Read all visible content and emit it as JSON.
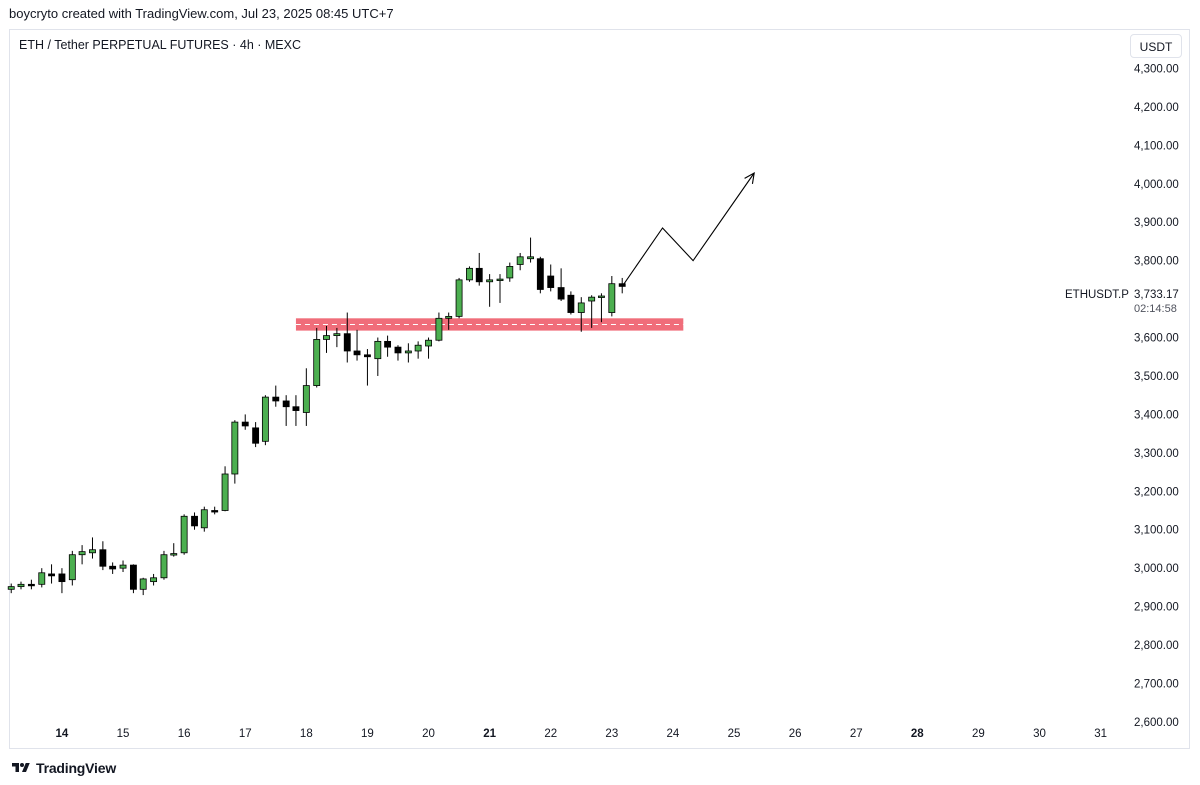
{
  "caption": "boycryto created with TradingView.com, Jul 23, 2025 08:45 UTC+7",
  "symbol_title": "ETH / Tether PERPETUAL FUTURES · 4h · MEXC",
  "currency": "USDT",
  "ticker_label": "ETHUSDT.P",
  "current_price": "3,733.17",
  "countdown": "02:14:58",
  "footer_brand": "TradingView",
  "colors": {
    "up": "#4caf50",
    "down": "#000000",
    "zone": "#f06d7a",
    "grid": "#e0e3eb"
  },
  "chart_data": {
    "type": "candlestick",
    "title": "ETH / Tether PERPETUAL FUTURES · 4h · MEXC",
    "ylabel": "USDT",
    "ylim": [
      2540,
      4400
    ],
    "yticks": [
      {
        "value": 4300,
        "label": "4,300.00"
      },
      {
        "value": 4200,
        "label": "4,200.00"
      },
      {
        "value": 4100,
        "label": "4,100.00"
      },
      {
        "value": 4000,
        "label": "4,000.00"
      },
      {
        "value": 3900,
        "label": "3,900.00"
      },
      {
        "value": 3800,
        "label": "3,800.00"
      },
      {
        "value": 3600,
        "label": "3,600.00"
      },
      {
        "value": 3500,
        "label": "3,500.00"
      },
      {
        "value": 3400,
        "label": "3,400.00"
      },
      {
        "value": 3300,
        "label": "3,300.00"
      },
      {
        "value": 3200,
        "label": "3,200.00"
      },
      {
        "value": 3100,
        "label": "3,100.00"
      },
      {
        "value": 3000,
        "label": "3,000.00"
      },
      {
        "value": 2900,
        "label": "2,900.00"
      },
      {
        "value": 2800,
        "label": "2,800.00"
      },
      {
        "value": 2700,
        "label": "2,700.00"
      },
      {
        "value": 2600,
        "label": "2,600.00"
      }
    ],
    "xlim": [
      13.15,
      31.35
    ],
    "xticks": [
      {
        "day": 14,
        "label": "14",
        "bold": true
      },
      {
        "day": 15,
        "label": "15",
        "bold": false
      },
      {
        "day": 16,
        "label": "16",
        "bold": false
      },
      {
        "day": 17,
        "label": "17",
        "bold": false
      },
      {
        "day": 18,
        "label": "18",
        "bold": false
      },
      {
        "day": 19,
        "label": "19",
        "bold": false
      },
      {
        "day": 20,
        "label": "20",
        "bold": false
      },
      {
        "day": 21,
        "label": "21",
        "bold": true
      },
      {
        "day": 22,
        "label": "22",
        "bold": false
      },
      {
        "day": 23,
        "label": "23",
        "bold": false
      },
      {
        "day": 24,
        "label": "24",
        "bold": false
      },
      {
        "day": 25,
        "label": "25",
        "bold": false
      },
      {
        "day": 26,
        "label": "26",
        "bold": false
      },
      {
        "day": 27,
        "label": "27",
        "bold": false
      },
      {
        "day": 28,
        "label": "28",
        "bold": true
      },
      {
        "day": 29,
        "label": "29",
        "bold": false
      },
      {
        "day": 30,
        "label": "30",
        "bold": false
      },
      {
        "day": 31,
        "label": "31",
        "bold": false
      }
    ],
    "candles": [
      {
        "t": 13.17,
        "o": 2945,
        "h": 2960,
        "l": 2935,
        "c": 2952
      },
      {
        "t": 13.33,
        "o": 2952,
        "h": 2965,
        "l": 2945,
        "c": 2958
      },
      {
        "t": 13.5,
        "o": 2958,
        "h": 2970,
        "l": 2945,
        "c": 2955
      },
      {
        "t": 13.67,
        "o": 2958,
        "h": 3000,
        "l": 2950,
        "c": 2988
      },
      {
        "t": 13.83,
        "o": 2985,
        "h": 3010,
        "l": 2960,
        "c": 2980
      },
      {
        "t": 14.0,
        "o": 2985,
        "h": 3000,
        "l": 2935,
        "c": 2965
      },
      {
        "t": 14.17,
        "o": 2970,
        "h": 3045,
        "l": 2955,
        "c": 3035
      },
      {
        "t": 14.33,
        "o": 3035,
        "h": 3060,
        "l": 3010,
        "c": 3043
      },
      {
        "t": 14.5,
        "o": 3040,
        "h": 3080,
        "l": 3025,
        "c": 3048
      },
      {
        "t": 14.67,
        "o": 3048,
        "h": 3070,
        "l": 2995,
        "c": 3005
      },
      {
        "t": 14.83,
        "o": 3005,
        "h": 3015,
        "l": 2985,
        "c": 2998
      },
      {
        "t": 15.0,
        "o": 3000,
        "h": 3020,
        "l": 2990,
        "c": 3008
      },
      {
        "t": 15.17,
        "o": 3008,
        "h": 3010,
        "l": 2935,
        "c": 2945
      },
      {
        "t": 15.33,
        "o": 2945,
        "h": 2975,
        "l": 2930,
        "c": 2972
      },
      {
        "t": 15.5,
        "o": 2965,
        "h": 2985,
        "l": 2955,
        "c": 2975
      },
      {
        "t": 15.67,
        "o": 2975,
        "h": 3045,
        "l": 2970,
        "c": 3035
      },
      {
        "t": 15.83,
        "o": 3035,
        "h": 3065,
        "l": 3030,
        "c": 3038
      },
      {
        "t": 16.0,
        "o": 3040,
        "h": 3140,
        "l": 3035,
        "c": 3135
      },
      {
        "t": 16.17,
        "o": 3135,
        "h": 3145,
        "l": 3100,
        "c": 3110
      },
      {
        "t": 16.33,
        "o": 3105,
        "h": 3160,
        "l": 3095,
        "c": 3152
      },
      {
        "t": 16.5,
        "o": 3150,
        "h": 3160,
        "l": 3140,
        "c": 3147
      },
      {
        "t": 16.67,
        "o": 3150,
        "h": 3265,
        "l": 3148,
        "c": 3245
      },
      {
        "t": 16.83,
        "o": 3245,
        "h": 3385,
        "l": 3220,
        "c": 3380
      },
      {
        "t": 17.0,
        "o": 3380,
        "h": 3400,
        "l": 3360,
        "c": 3370
      },
      {
        "t": 17.17,
        "o": 3365,
        "h": 3380,
        "l": 3315,
        "c": 3325
      },
      {
        "t": 17.33,
        "o": 3330,
        "h": 3450,
        "l": 3320,
        "c": 3445
      },
      {
        "t": 17.5,
        "o": 3445,
        "h": 3475,
        "l": 3420,
        "c": 3435
      },
      {
        "t": 17.67,
        "o": 3435,
        "h": 3450,
        "l": 3370,
        "c": 3420
      },
      {
        "t": 17.83,
        "o": 3420,
        "h": 3450,
        "l": 3370,
        "c": 3410
      },
      {
        "t": 18.0,
        "o": 3405,
        "h": 3520,
        "l": 3370,
        "c": 3475
      },
      {
        "t": 18.17,
        "o": 3475,
        "h": 3625,
        "l": 3470,
        "c": 3595
      },
      {
        "t": 18.33,
        "o": 3595,
        "h": 3630,
        "l": 3560,
        "c": 3605
      },
      {
        "t": 18.5,
        "o": 3605,
        "h": 3625,
        "l": 3575,
        "c": 3610
      },
      {
        "t": 18.67,
        "o": 3610,
        "h": 3665,
        "l": 3535,
        "c": 3565
      },
      {
        "t": 18.83,
        "o": 3565,
        "h": 3620,
        "l": 3540,
        "c": 3555
      },
      {
        "t": 19.0,
        "o": 3555,
        "h": 3570,
        "l": 3475,
        "c": 3550
      },
      {
        "t": 19.17,
        "o": 3545,
        "h": 3600,
        "l": 3500,
        "c": 3590
      },
      {
        "t": 19.33,
        "o": 3590,
        "h": 3605,
        "l": 3550,
        "c": 3575
      },
      {
        "t": 19.5,
        "o": 3575,
        "h": 3580,
        "l": 3540,
        "c": 3560
      },
      {
        "t": 19.67,
        "o": 3560,
        "h": 3585,
        "l": 3535,
        "c": 3565
      },
      {
        "t": 19.83,
        "o": 3565,
        "h": 3590,
        "l": 3545,
        "c": 3580
      },
      {
        "t": 20.0,
        "o": 3578,
        "h": 3600,
        "l": 3545,
        "c": 3593
      },
      {
        "t": 20.17,
        "o": 3593,
        "h": 3665,
        "l": 3590,
        "c": 3650
      },
      {
        "t": 20.33,
        "o": 3650,
        "h": 3665,
        "l": 3620,
        "c": 3655
      },
      {
        "t": 20.5,
        "o": 3655,
        "h": 3755,
        "l": 3650,
        "c": 3750
      },
      {
        "t": 20.67,
        "o": 3750,
        "h": 3785,
        "l": 3745,
        "c": 3780
      },
      {
        "t": 20.83,
        "o": 3780,
        "h": 3820,
        "l": 3735,
        "c": 3745
      },
      {
        "t": 21.0,
        "o": 3745,
        "h": 3765,
        "l": 3680,
        "c": 3750
      },
      {
        "t": 21.17,
        "o": 3750,
        "h": 3765,
        "l": 3690,
        "c": 3752
      },
      {
        "t": 21.33,
        "o": 3755,
        "h": 3795,
        "l": 3745,
        "c": 3785
      },
      {
        "t": 21.5,
        "o": 3790,
        "h": 3820,
        "l": 3775,
        "c": 3810
      },
      {
        "t": 21.67,
        "o": 3805,
        "h": 3860,
        "l": 3795,
        "c": 3810
      },
      {
        "t": 21.83,
        "o": 3805,
        "h": 3810,
        "l": 3715,
        "c": 3725
      },
      {
        "t": 22.0,
        "o": 3760,
        "h": 3790,
        "l": 3720,
        "c": 3730
      },
      {
        "t": 22.17,
        "o": 3730,
        "h": 3780,
        "l": 3695,
        "c": 3700
      },
      {
        "t": 22.33,
        "o": 3710,
        "h": 3720,
        "l": 3660,
        "c": 3665
      },
      {
        "t": 22.5,
        "o": 3665,
        "h": 3705,
        "l": 3615,
        "c": 3690
      },
      {
        "t": 22.67,
        "o": 3695,
        "h": 3710,
        "l": 3625,
        "c": 3705
      },
      {
        "t": 22.83,
        "o": 3705,
        "h": 3715,
        "l": 3640,
        "c": 3708
      },
      {
        "t": 23.0,
        "o": 3665,
        "h": 3760,
        "l": 3655,
        "c": 3740
      },
      {
        "t": 23.17,
        "o": 3740,
        "h": 3755,
        "l": 3715,
        "c": 3733
      }
    ],
    "support_zone": {
      "low": 3618,
      "high": 3650,
      "mid": 3634,
      "t_start": 17.83,
      "t_end": 24.17
    },
    "projection": [
      {
        "t": 23.17,
        "p": 3733
      },
      {
        "t": 23.83,
        "p": 3885
      },
      {
        "t": 24.33,
        "p": 3800
      },
      {
        "t": 25.33,
        "p": 4028
      }
    ]
  }
}
